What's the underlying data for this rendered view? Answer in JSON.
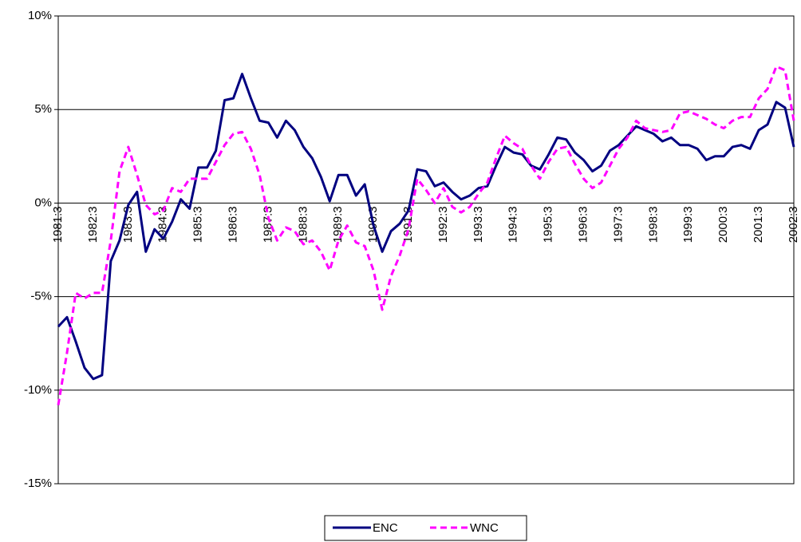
{
  "chart_data": {
    "type": "line",
    "categories": [
      "1981:3",
      null,
      null,
      null,
      "1982:3",
      null,
      null,
      null,
      "1983:3",
      null,
      null,
      null,
      "1984:3",
      null,
      null,
      null,
      "1985:3",
      null,
      null,
      null,
      "1986:3",
      null,
      null,
      null,
      "1987:3",
      null,
      null,
      null,
      "1988:3",
      null,
      null,
      null,
      "1989:3",
      null,
      null,
      null,
      "1990:3",
      null,
      null,
      null,
      "1991:3",
      null,
      null,
      null,
      "1992:3",
      null,
      null,
      null,
      "1993:3",
      null,
      null,
      null,
      "1994:3",
      null,
      null,
      null,
      "1995:3",
      null,
      null,
      null,
      "1996:3",
      null,
      null,
      null,
      "1997:3",
      null,
      null,
      null,
      "1998:3",
      null,
      null,
      null,
      "1999:3",
      null,
      null,
      null,
      "2000:3",
      null,
      null,
      null,
      "2001:3",
      null,
      null,
      null,
      "2002:3"
    ],
    "series": [
      {
        "name": "ENC",
        "color": "#000080",
        "dash": false,
        "values": [
          -6.6,
          -6.1,
          -7.4,
          -8.8,
          -9.4,
          -9.2,
          -3.1,
          -2.0,
          -0.1,
          0.6,
          -2.6,
          -1.4,
          -1.9,
          -1.0,
          0.2,
          -0.3,
          1.9,
          1.9,
          2.8,
          5.5,
          5.6,
          6.9,
          5.6,
          4.4,
          4.3,
          3.5,
          4.4,
          3.9,
          3.0,
          2.4,
          1.4,
          0.1,
          1.5,
          1.5,
          0.4,
          1.0,
          -1.2,
          -2.6,
          -1.5,
          -1.1,
          -0.4,
          1.8,
          1.7,
          0.9,
          1.1,
          0.6,
          0.2,
          0.4,
          0.8,
          0.9,
          2.0,
          3.0,
          2.7,
          2.6,
          2.0,
          1.8,
          2.6,
          3.5,
          3.4,
          2.7,
          2.3,
          1.7,
          2.0,
          2.8,
          3.1,
          3.6,
          4.1,
          3.9,
          3.7,
          3.3,
          3.5,
          3.1,
          3.1,
          2.9,
          2.3,
          2.5,
          2.5,
          3.0,
          3.1,
          2.9,
          3.9,
          4.2,
          5.4,
          5.1,
          3.0
        ]
      },
      {
        "name": "WNC",
        "color": "#ff00ff",
        "dash": true,
        "values": [
          -10.8,
          -8.0,
          -4.8,
          -5.1,
          -4.8,
          -4.8,
          -2.0,
          1.7,
          3.0,
          1.5,
          -0.1,
          -0.6,
          -0.4,
          0.8,
          0.6,
          1.3,
          1.3,
          1.3,
          2.2,
          3.1,
          3.7,
          3.8,
          2.9,
          1.5,
          -0.8,
          -2.0,
          -1.3,
          -1.5,
          -2.2,
          -2.0,
          -2.6,
          -3.6,
          -2.0,
          -1.2,
          -2.1,
          -2.3,
          -3.6,
          -5.7,
          -3.9,
          -2.8,
          -1.4,
          1.3,
          0.7,
          0.0,
          0.8,
          -0.2,
          -0.5,
          -0.2,
          0.5,
          1.1,
          2.4,
          3.6,
          3.2,
          2.9,
          2.0,
          1.3,
          2.2,
          2.9,
          3.0,
          2.1,
          1.3,
          0.8,
          1.1,
          2.0,
          2.9,
          3.5,
          4.4,
          4.0,
          3.9,
          3.8,
          3.9,
          4.8,
          4.9,
          4.7,
          4.5,
          4.2,
          4.0,
          4.4,
          4.6,
          4.6,
          5.6,
          6.1,
          7.3,
          7.1,
          4.4
        ]
      }
    ],
    "ylim": [
      -15,
      10
    ],
    "yticks": [
      {
        "value": -15,
        "label": "-15%"
      },
      {
        "value": -10,
        "label": "-10%"
      },
      {
        "value": -5,
        "label": "-5%"
      },
      {
        "value": 0,
        "label": "0%"
      },
      {
        "value": 5,
        "label": "5%"
      },
      {
        "value": 10,
        "label": "10%"
      }
    ],
    "grid": true,
    "legend": "bottom"
  }
}
